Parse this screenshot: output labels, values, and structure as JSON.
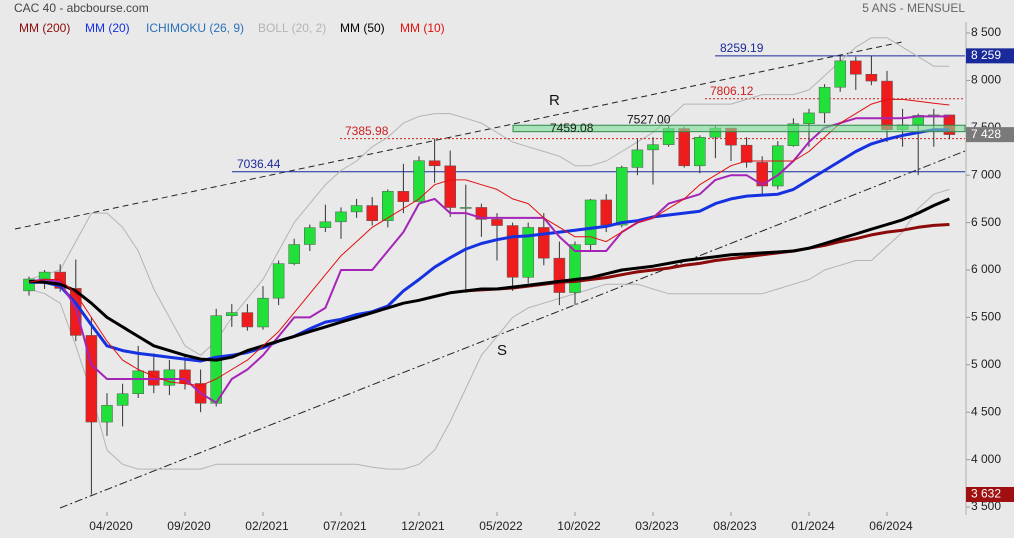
{
  "chart_data": {
    "type": "candlestick",
    "title": "CAC 40 - abcbourse.com",
    "subtitle": "5 ANS - MENSUEL",
    "categories": [
      null,
      null,
      null,
      null,
      null,
      "04/2020",
      null,
      null,
      null,
      null,
      "09/2020",
      null,
      null,
      null,
      null,
      "02/2021",
      null,
      null,
      null,
      null,
      "07/2021",
      null,
      null,
      null,
      null,
      "12/2021",
      null,
      null,
      null,
      null,
      "05/2022",
      null,
      null,
      null,
      null,
      "10/2022",
      null,
      null,
      null,
      null,
      "03/2023",
      null,
      null,
      null,
      null,
      "08/2023",
      null,
      null,
      null,
      null,
      "01/2024",
      null,
      null,
      null,
      null,
      "06/2024",
      null,
      null,
      null,
      null
    ],
    "open": [
      5780,
      5905,
      5978,
      5806,
      5310,
      4396,
      4572,
      4695,
      4936,
      4784,
      4947,
      4803,
      4594,
      5518,
      5551,
      5399,
      5703,
      6067,
      6269,
      6447,
      6508,
      6613,
      6680,
      6520,
      6830,
      6721,
      7153,
      7099,
      6659,
      6660,
      6534,
      6469,
      5923,
      6449,
      6125,
      5762,
      6267,
      6739,
      6474,
      7082,
      7267,
      7322,
      7492,
      7099,
      7400,
      7497,
      7317,
      7135,
      6886,
      7311,
      7543,
      7657,
      7928,
      8206,
      8065,
      7993,
      7479,
      7531,
      7631,
      7636
    ],
    "high": [
      5930,
      6000,
      6060,
      6110,
      5500,
      4700,
      4800,
      5200,
      5120,
      5050,
      5100,
      4950,
      5590,
      5640,
      5640,
      5830,
      6100,
      6330,
      6480,
      6690,
      6660,
      6750,
      6770,
      6850,
      7120,
      7200,
      7386,
      7260,
      6900,
      6700,
      6600,
      6500,
      6500,
      6600,
      6300,
      6300,
      6750,
      6800,
      7100,
      7380,
      7400,
      7527,
      7510,
      7420,
      7520,
      7500,
      7400,
      7200,
      7360,
      7600,
      7700,
      7960,
      8259,
      8250,
      8260,
      8100,
      7700,
      7650,
      7700,
      7600
    ],
    "low": [
      5730,
      5800,
      5770,
      5250,
      3632,
      4250,
      4350,
      4650,
      4700,
      4680,
      4740,
      4500,
      4560,
      5400,
      5360,
      5370,
      5630,
      6050,
      6200,
      6400,
      6330,
      6550,
      6470,
      6450,
      6600,
      6750,
      6920,
      6560,
      5760,
      6350,
      6100,
      5780,
      5860,
      6050,
      5630,
      5630,
      6200,
      6400,
      6450,
      7000,
      6900,
      7300,
      7080,
      7020,
      7180,
      7150,
      7080,
      6780,
      6850,
      7300,
      7300,
      7550,
      7880,
      7900,
      7950,
      7350,
      7300,
      7000,
      7300,
      7380
    ],
    "close": [
      5905,
      5978,
      5806,
      5310,
      4396,
      4572,
      4695,
      4936,
      4784,
      4947,
      4803,
      4594,
      5518,
      5551,
      5399,
      5703,
      6067,
      6269,
      6447,
      6508,
      6613,
      6680,
      6520,
      6830,
      6721,
      7153,
      7099,
      6659,
      6660,
      6534,
      6469,
      5923,
      6449,
      6125,
      5762,
      6267,
      6739,
      6474,
      7082,
      7267,
      7322,
      7492,
      7099,
      7400,
      7497,
      7317,
      7135,
      6886,
      7311,
      7543,
      7657,
      7928,
      8206,
      8065,
      7993,
      7479,
      7531,
      7631,
      7636,
      7428
    ],
    "up_color": "#22e03a",
    "down_color": "#ee1c1c",
    "series": [
      {
        "name": "MM (200)",
        "color": "#8b0a0a",
        "values": [
          null,
          null,
          null,
          null,
          null,
          null,
          null,
          null,
          null,
          null,
          null,
          null,
          null,
          null,
          null,
          null,
          null,
          null,
          null,
          null,
          null,
          null,
          null,
          null,
          null,
          null,
          null,
          null,
          5780,
          5790,
          5800,
          5810,
          5830,
          5850,
          5870,
          5880,
          5900,
          5920,
          5950,
          5980,
          6000,
          6020,
          6050,
          6070,
          6100,
          6120,
          6140,
          6160,
          6180,
          6200,
          6230,
          6260,
          6300,
          6330,
          6370,
          6400,
          6420,
          6450,
          6470,
          6480
        ]
      },
      {
        "name": "MM (20)",
        "color": "#1632e0",
        "values": [
          5870,
          5870,
          5830,
          5650,
          5420,
          5200,
          5150,
          5120,
          5100,
          5080,
          5060,
          5040,
          5080,
          5100,
          5130,
          5180,
          5250,
          5300,
          5380,
          5450,
          5480,
          5530,
          5560,
          5620,
          5780,
          5900,
          6030,
          6130,
          6220,
          6280,
          6320,
          6350,
          6360,
          6380,
          6400,
          6420,
          6440,
          6460,
          6500,
          6520,
          6560,
          6580,
          6600,
          6620,
          6700,
          6750,
          6780,
          6790,
          6800,
          6850,
          6950,
          7050,
          7150,
          7250,
          7330,
          7380,
          7420,
          7450,
          7480,
          7480
        ]
      },
      {
        "name": "ICHIMOKU (26, 9)",
        "color": "#a524b8",
        "legend_color": "#2a70b8",
        "values": [
          5880,
          5900,
          5870,
          5600,
          5000,
          4850,
          4850,
          4850,
          4850,
          4850,
          4850,
          4700,
          4600,
          4850,
          4950,
          5100,
          5300,
          5500,
          5500,
          5600,
          6000,
          6000,
          6000,
          6200,
          6400,
          6700,
          6750,
          6600,
          6600,
          6550,
          6550,
          6550,
          6550,
          6550,
          6350,
          6200,
          6200,
          6200,
          6400,
          6500,
          6550,
          6700,
          6750,
          6800,
          6950,
          7000,
          7000,
          6900,
          7000,
          7150,
          7350,
          7500,
          7550,
          7600,
          7600,
          7600,
          7600,
          7620,
          7620,
          7620
        ]
      },
      {
        "name": "BOLL (20, 2)",
        "color": "#b4b4b4",
        "upper": [
          5900,
          5950,
          6000,
          6300,
          6600,
          6600,
          6450,
          6200,
          5800,
          5500,
          5200,
          5100,
          5250,
          5500,
          5700,
          5900,
          6200,
          6500,
          6700,
          6900,
          7050,
          7150,
          7300,
          7400,
          7550,
          7620,
          7650,
          7650,
          7600,
          7550,
          7450,
          7350,
          7300,
          7250,
          7200,
          7100,
          7100,
          7150,
          7250,
          7350,
          7450,
          7600,
          7750,
          7750,
          7750,
          7750,
          7800,
          7850,
          7850,
          7850,
          7900,
          8050,
          8200,
          8350,
          8450,
          8450,
          8350,
          8250,
          8150,
          8150
        ],
        "lower": [
          5800,
          5750,
          5650,
          5200,
          4700,
          4100,
          3950,
          3900,
          3900,
          3900,
          3900,
          3900,
          3950,
          3950,
          3950,
          3950,
          3950,
          3950,
          3950,
          3950,
          3950,
          3950,
          3920,
          3900,
          3900,
          3950,
          4100,
          4400,
          4750,
          5100,
          5300,
          5500,
          5600,
          5650,
          5700,
          5750,
          5800,
          5850,
          5850,
          5850,
          5800,
          5750,
          5750,
          5750,
          5750,
          5750,
          5750,
          5750,
          5800,
          5850,
          5900,
          6000,
          6050,
          6100,
          6100,
          6250,
          6400,
          6650,
          6800,
          6850
        ]
      },
      {
        "name": "MM (50)",
        "color": "#000000",
        "values": [
          5880,
          5870,
          5850,
          5780,
          5650,
          5500,
          5400,
          5300,
          5200,
          5150,
          5100,
          5060,
          5050,
          5080,
          5150,
          5200,
          5250,
          5300,
          5350,
          5400,
          5450,
          5500,
          5550,
          5600,
          5650,
          5680,
          5720,
          5760,
          5780,
          5800,
          5800,
          5820,
          5840,
          5860,
          5880,
          5900,
          5920,
          5960,
          6000,
          6020,
          6040,
          6070,
          6100,
          6120,
          6140,
          6160,
          6170,
          6180,
          6190,
          6200,
          6230,
          6280,
          6330,
          6380,
          6430,
          6480,
          6530,
          6600,
          6680,
          6750
        ]
      },
      {
        "name": "MM (10)",
        "color": "#e01010",
        "values": [
          5870,
          5900,
          5900,
          5750,
          5500,
          5250,
          5050,
          4950,
          4880,
          4820,
          4800,
          4780,
          4850,
          4950,
          5050,
          5200,
          5350,
          5550,
          5750,
          5950,
          6150,
          6300,
          6450,
          6550,
          6650,
          6750,
          6900,
          6950,
          6950,
          6900,
          6850,
          6750,
          6700,
          6550,
          6450,
          6350,
          6350,
          6300,
          6400,
          6500,
          6550,
          6650,
          6750,
          6900,
          7000,
          7100,
          7150,
          7150,
          7150,
          7150,
          7250,
          7400,
          7550,
          7650,
          7750,
          7800,
          7800,
          7780,
          7760,
          7740
        ]
      }
    ],
    "levels": [
      {
        "value": 8259.19,
        "color": "#1a2a9a",
        "style": "solid"
      },
      {
        "value": 7806.12,
        "color": "#d02020",
        "style": "dotted"
      },
      {
        "value": 7385.98,
        "color": "#d02020",
        "style": "dotted"
      },
      {
        "value": 7036.44,
        "color": "#1a2a9a",
        "style": "solid"
      }
    ],
    "zone": {
      "low": 7459.08,
      "high": {
        "value": 7527,
        "label": "7527.00"
      },
      "color": "#7fdc9a"
    },
    "annotations": [
      "R",
      "S"
    ],
    "price_tags": [
      {
        "value": 8259,
        "label": "8 259",
        "color": "#1a2a9a"
      },
      {
        "value": 7428,
        "label": "7 428",
        "color": "#7a7a7a"
      },
      {
        "value": 3632,
        "label": "3 632",
        "color": "#a01010"
      }
    ],
    "ylim": [
      3500,
      8500
    ],
    "yticks": [
      {
        "value": 8500,
        "label": "8 500"
      },
      {
        "value": 8000,
        "label": "8 000"
      },
      {
        "value": 7500,
        "label": "7 500"
      },
      {
        "value": 7000,
        "label": "7 000"
      },
      {
        "value": 6500,
        "label": "6 500"
      },
      {
        "value": 6000,
        "label": "6 000"
      },
      {
        "value": 5500,
        "label": "5 500"
      },
      {
        "value": 5000,
        "label": "5 000"
      },
      {
        "value": 4500,
        "label": "4 500"
      },
      {
        "value": 4000,
        "label": "4 000"
      },
      {
        "value": 3500,
        "label": "3 500"
      }
    ]
  }
}
